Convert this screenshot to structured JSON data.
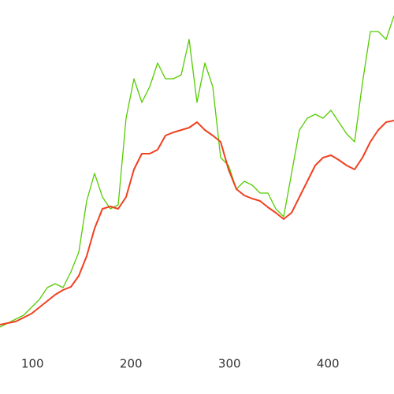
{
  "chart_data": {
    "type": "line",
    "x": [
      67,
      75,
      83,
      91,
      99,
      107,
      115,
      123,
      131,
      139,
      147,
      155,
      163,
      171,
      179,
      187,
      195,
      203,
      211,
      219,
      227,
      235,
      243,
      251,
      259,
      267,
      275,
      283,
      291,
      299,
      307,
      315,
      323,
      331,
      339,
      347,
      355,
      363,
      371,
      379,
      387,
      395,
      403,
      411,
      419,
      427,
      435,
      443,
      451,
      459,
      467
    ],
    "series": [
      {
        "color": "#55cc00",
        "values": [
          35,
          40,
          45,
          50,
          60,
          70,
          85,
          90,
          85,
          105,
          130,
          195,
          230,
          200,
          185,
          190,
          300,
          350,
          320,
          340,
          370,
          350,
          350,
          355,
          400,
          320,
          370,
          340,
          250,
          240,
          210,
          220,
          215,
          205,
          205,
          185,
          175,
          230,
          285,
          300,
          305,
          300,
          310,
          295,
          280,
          270,
          345,
          410,
          410,
          400,
          430
        ]
      },
      {
        "color": "#f04020",
        "values": [
          38,
          40,
          42,
          47,
          52,
          60,
          68,
          76,
          82,
          86,
          100,
          125,
          160,
          185,
          188,
          185,
          200,
          235,
          255,
          255,
          260,
          278,
          282,
          285,
          288,
          295,
          285,
          278,
          270,
          235,
          210,
          202,
          198,
          195,
          187,
          180,
          172,
          180,
          200,
          220,
          240,
          250,
          253,
          247,
          240,
          235,
          250,
          270,
          285,
          295,
          297
        ]
      }
    ],
    "xlim": [
      67,
      467
    ],
    "xticks": [
      100,
      200,
      300,
      400
    ],
    "ylim": [
      0,
      450
    ]
  }
}
